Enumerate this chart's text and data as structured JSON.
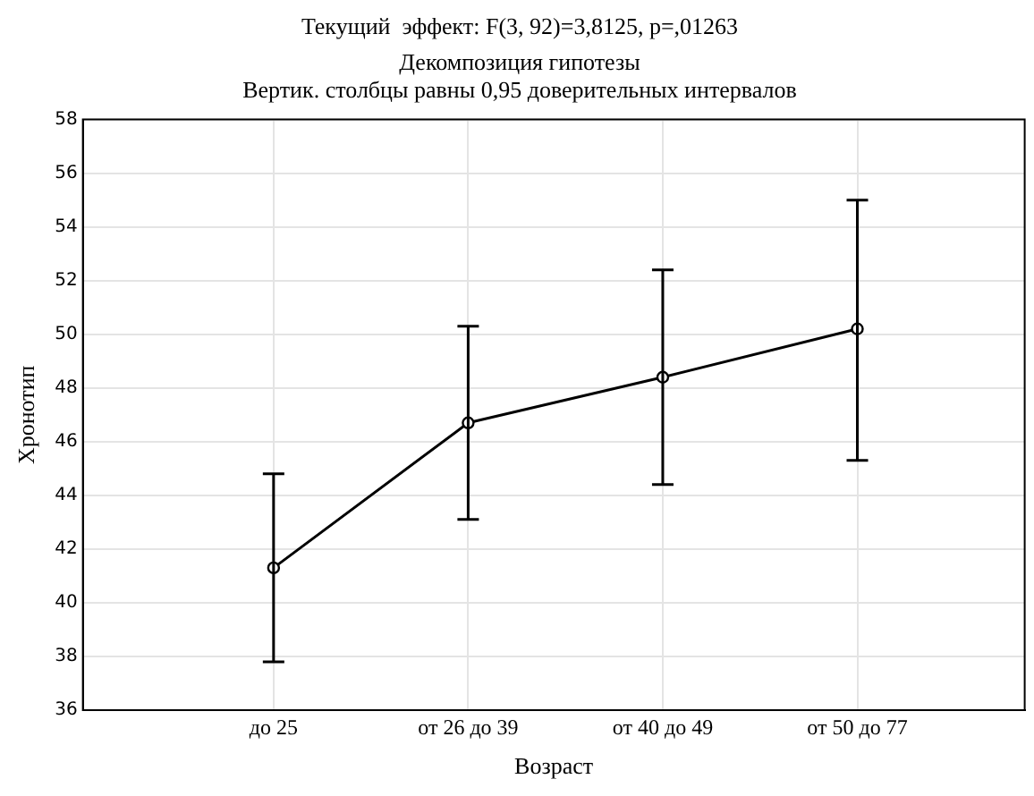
{
  "chart_data": {
    "type": "line",
    "title": "Текущий  эффект: F(3, 92)=3,8125, p=,01263",
    "subtitle": "Декомпозиция гипотезы",
    "annotations": [
      "Вертик. столбцы равны 0,95 доверительных интервалов"
    ],
    "xlabel": "Возраст",
    "ylabel": "Хронотип",
    "categories": [
      "до 25",
      "от 26 до 39",
      "от 40 до 49",
      "от 50 до 77"
    ],
    "series": [
      {
        "color": "#000000",
        "values": [
          41.3,
          46.7,
          48.4,
          50.2
        ],
        "errors": [
          [
            37.8,
            44.8
          ],
          [
            43.1,
            50.3
          ],
          [
            44.4,
            52.4
          ],
          [
            45.3,
            55.0
          ]
        ]
      }
    ],
    "ylim": [
      36,
      58
    ],
    "yticks": [
      36,
      38,
      40,
      42,
      44,
      46,
      48,
      50,
      52,
      54,
      56,
      58
    ],
    "grid": true,
    "legend": false,
    "marker": "circle",
    "line_style": "solid"
  }
}
